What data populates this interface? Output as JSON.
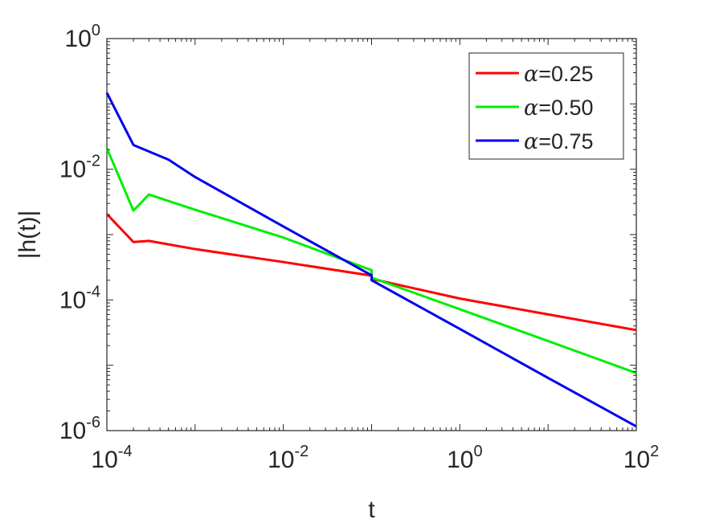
{
  "chart_data": {
    "type": "line",
    "xlabel": "t",
    "ylabel": "|h(t)|",
    "xscale": "log",
    "yscale": "log",
    "xlim": [
      0.0001,
      100
    ],
    "ylim": [
      1e-06,
      1
    ],
    "xticks": [
      {
        "base": "10",
        "exp": "-4",
        "value": 0.0001
      },
      {
        "base": "10",
        "exp": "-2",
        "value": 0.01
      },
      {
        "base": "10",
        "exp": "0",
        "value": 1
      },
      {
        "base": "10",
        "exp": "2",
        "value": 100
      }
    ],
    "yticks": [
      {
        "base": "10",
        "exp": "-6",
        "value": 1e-06
      },
      {
        "base": "10",
        "exp": "-4",
        "value": 0.0001
      },
      {
        "base": "10",
        "exp": "-2",
        "value": 0.01
      },
      {
        "base": "10",
        "exp": "0",
        "value": 1
      }
    ],
    "grid": false,
    "legend_position": "top-right",
    "series": [
      {
        "name": "α=0.25",
        "alpha_symbol": "α",
        "label_suffix": "=0.25",
        "color": "#ff0000",
        "points": [
          [
            0.0001,
            0.00206
          ],
          [
            0.0002,
            0.00077
          ],
          [
            0.0003,
            0.0008
          ],
          [
            0.001,
            0.0006
          ],
          [
            0.01,
            0.00038
          ],
          [
            0.1,
            0.000235
          ],
          [
            0.1,
            0.00021
          ],
          [
            1,
            0.000105
          ],
          [
            10,
            6e-05
          ],
          [
            100,
            3.45e-05
          ]
        ]
      },
      {
        "name": "α=0.50",
        "alpha_symbol": "α",
        "label_suffix": "=0.50",
        "color": "#00ee00",
        "points": [
          [
            0.0001,
            0.021
          ],
          [
            0.0002,
            0.00233
          ],
          [
            0.0003,
            0.0041
          ],
          [
            0.001,
            0.0024
          ],
          [
            0.01,
            0.0009
          ],
          [
            0.1,
            0.000285
          ],
          [
            0.1,
            0.00022
          ],
          [
            1,
            7.2e-05
          ],
          [
            10,
            2.35e-05
          ],
          [
            100,
            7.6e-06
          ]
        ]
      },
      {
        "name": "α=0.75",
        "alpha_symbol": "α",
        "label_suffix": "=0.75",
        "color": "#0000ee",
        "points": [
          [
            0.0001,
            0.148
          ],
          [
            0.0002,
            0.0235
          ],
          [
            0.0005,
            0.014
          ],
          [
            0.001,
            0.0076
          ],
          [
            0.01,
            0.00133
          ],
          [
            0.1,
            0.000238
          ],
          [
            0.1,
            0.0002
          ],
          [
            1,
            3.6e-05
          ],
          [
            10,
            6.4e-06
          ],
          [
            100,
            1.16e-06
          ]
        ]
      }
    ]
  }
}
